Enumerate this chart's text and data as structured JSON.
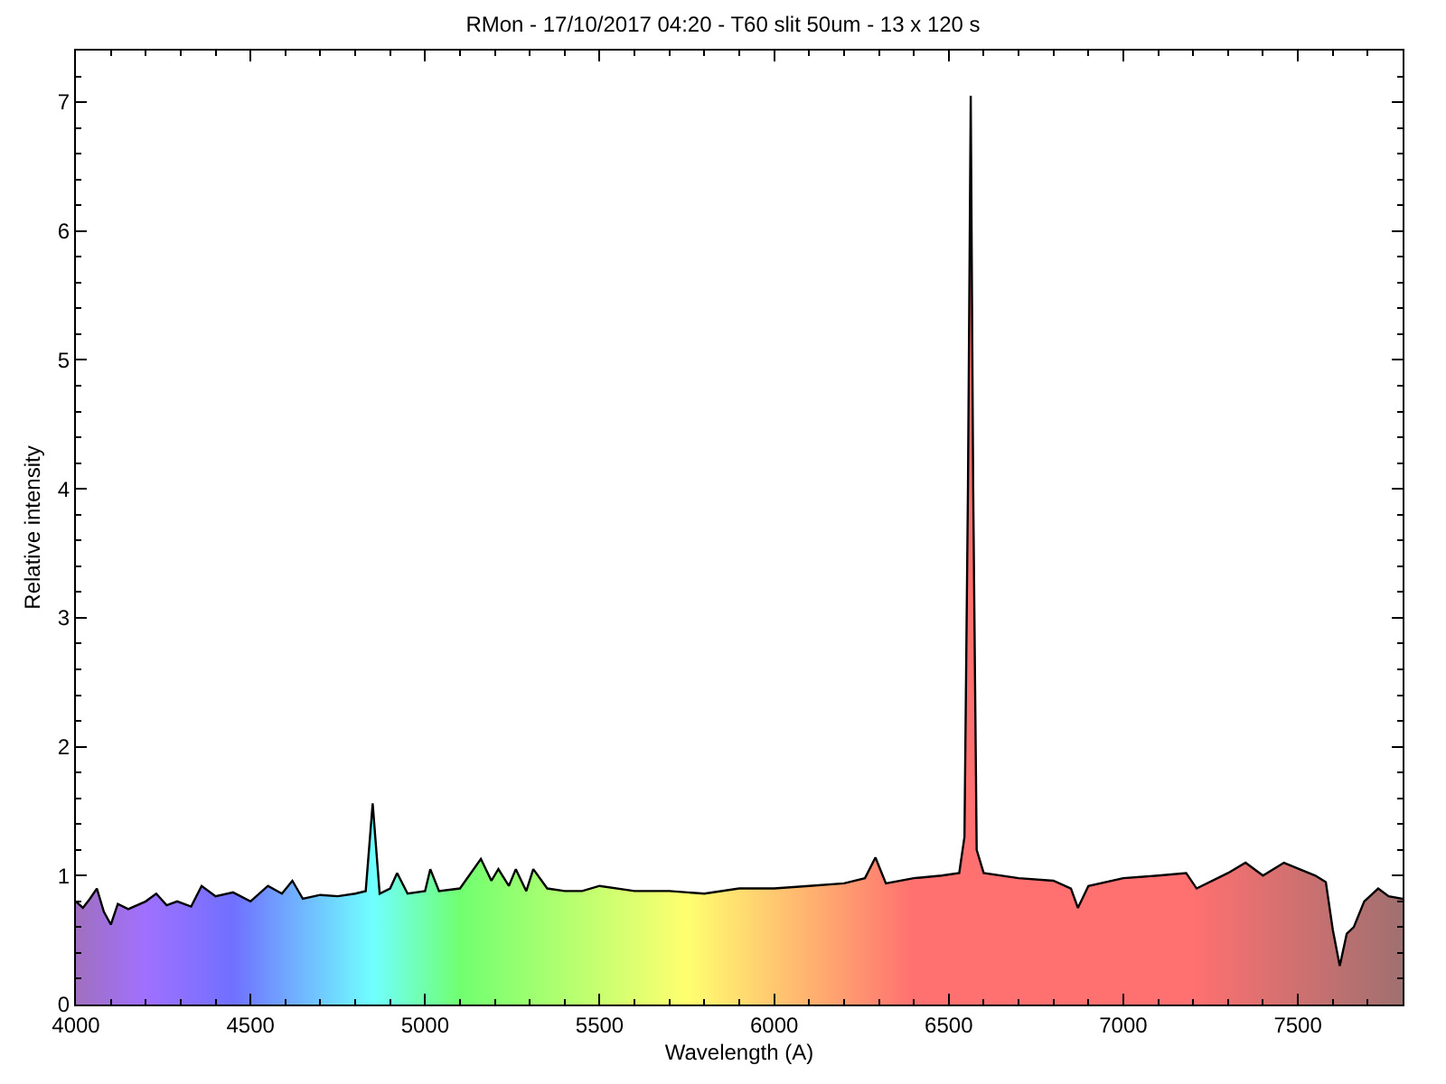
{
  "chart_data": {
    "type": "area",
    "title": "RMon - 17/10/2017 04:20 - T60 slit 50um - 13 x 120 s",
    "xlabel": "Wavelength (A)",
    "ylabel": "Relative intensity",
    "xlim": [
      4000,
      7800
    ],
    "xticks": [
      4000,
      4500,
      5000,
      5500,
      6000,
      6500,
      7000,
      7500
    ],
    "ylim": [
      0,
      7.4
    ],
    "yticks": [
      0,
      1,
      2,
      3,
      4,
      5,
      6,
      7
    ],
    "grid": false,
    "marker": "none",
    "line_style": "solid",
    "series": [
      {
        "color": "#000000",
        "x": [
          4000,
          4020,
          4040,
          4060,
          4080,
          4100,
          4120,
          4150,
          4200,
          4230,
          4260,
          4290,
          4330,
          4360,
          4400,
          4450,
          4500,
          4550,
          4590,
          4620,
          4650,
          4700,
          4750,
          4800,
          4830,
          4850,
          4870,
          4900,
          4920,
          4950,
          5000,
          5015,
          5040,
          5100,
          5160,
          5190,
          5210,
          5240,
          5260,
          5290,
          5310,
          5350,
          5400,
          5450,
          5500,
          5600,
          5700,
          5800,
          5900,
          6000,
          6100,
          6200,
          6260,
          6290,
          6320,
          6400,
          6480,
          6530,
          6545,
          6555,
          6563,
          6570,
          6580,
          6600,
          6700,
          6800,
          6850,
          6870,
          6900,
          7000,
          7100,
          7180,
          7210,
          7300,
          7350,
          7400,
          7460,
          7550,
          7580,
          7600,
          7620,
          7640,
          7660,
          7690,
          7730,
          7760,
          7800
        ],
        "values": [
          0.8,
          0.75,
          0.82,
          0.9,
          0.72,
          0.62,
          0.78,
          0.74,
          0.8,
          0.86,
          0.77,
          0.8,
          0.76,
          0.92,
          0.84,
          0.87,
          0.8,
          0.92,
          0.86,
          0.96,
          0.82,
          0.85,
          0.84,
          0.86,
          0.88,
          1.56,
          0.86,
          0.9,
          1.02,
          0.86,
          0.88,
          1.05,
          0.88,
          0.9,
          1.13,
          0.96,
          1.05,
          0.92,
          1.05,
          0.88,
          1.05,
          0.9,
          0.88,
          0.88,
          0.92,
          0.88,
          0.88,
          0.86,
          0.9,
          0.9,
          0.92,
          0.94,
          0.98,
          1.14,
          0.94,
          0.98,
          1.0,
          1.02,
          1.3,
          4.0,
          7.05,
          4.0,
          1.2,
          1.02,
          0.98,
          0.96,
          0.9,
          0.75,
          0.92,
          0.98,
          1.0,
          1.02,
          0.9,
          1.02,
          1.1,
          1.0,
          1.1,
          1.0,
          0.95,
          0.58,
          0.3,
          0.55,
          0.6,
          0.8,
          0.9,
          0.84,
          0.82
        ]
      }
    ]
  }
}
